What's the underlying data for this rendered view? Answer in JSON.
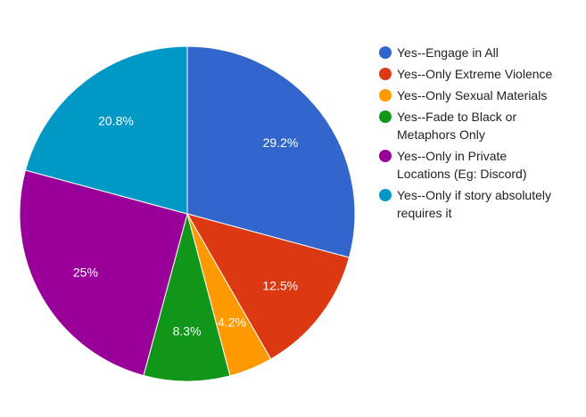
{
  "chart_data": {
    "type": "pie",
    "legend_position": "right",
    "slices": [
      {
        "label": "Yes--Engage in All",
        "legend_lines": [
          "Yes--Engage in All"
        ],
        "value": 29.2,
        "display": "29.2%",
        "color": "#3366cc"
      },
      {
        "label": "Yes--Only Extreme Violence",
        "legend_lines": [
          "Yes--Only Extreme Violence"
        ],
        "value": 12.5,
        "display": "12.5%",
        "color": "#dc3912"
      },
      {
        "label": "Yes--Only Sexual Materials",
        "legend_lines": [
          "Yes--Only Sexual Materials"
        ],
        "value": 4.2,
        "display": "4.2%",
        "color": "#ff9900"
      },
      {
        "label": "Yes--Fade to Black or Metaphors Only",
        "legend_lines": [
          "Yes--Fade to Black or",
          "Metaphors Only"
        ],
        "value": 8.3,
        "display": "8.3%",
        "color": "#109618"
      },
      {
        "label": "Yes--Only in Private Locations (Eg: Discord)",
        "legend_lines": [
          "Yes--Only in Private",
          "Locations (Eg: Discord)"
        ],
        "value": 25,
        "display": "25%",
        "color": "#990099"
      },
      {
        "label": "Yes--Only if story absolutely requires it",
        "legend_lines": [
          "Yes--Only if story absolutely",
          "requires it"
        ],
        "value": 20.8,
        "display": "20.8%",
        "color": "#0099c6"
      }
    ]
  }
}
